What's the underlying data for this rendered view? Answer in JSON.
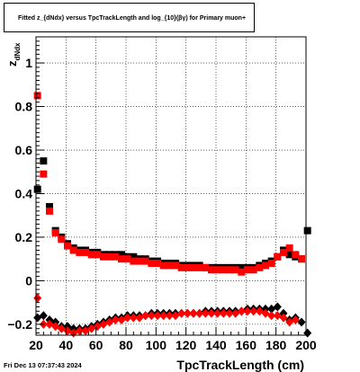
{
  "header": {
    "title": "Fitted  z_{dNdx}  versus TpcTrackLength and log_{10}(βγ) for Primary muon+"
  },
  "footer": {
    "date": "Fri Dec 13 07:37:43 2024"
  },
  "chart_data": {
    "type": "scatter",
    "title": "Fitted z_{dNdx} versus TpcTrackLength and log_{10}(βγ) for Primary muon+",
    "xlabel": "TpcTrackLength (cm)",
    "ylabel": "z_{dNdx}",
    "xlim": [
      20,
      200
    ],
    "ylim": [
      -0.25,
      1.12
    ],
    "grid": true,
    "legend": "none",
    "xticks": [
      20,
      40,
      60,
      80,
      100,
      120,
      140,
      160,
      180,
      200
    ],
    "yticks": [
      -0.2,
      0,
      0.2,
      0.4,
      0.6,
      0.8,
      1
    ],
    "ytick_labels": [
      "−0.2",
      "0",
      "0.2",
      "0.4",
      "0.6",
      "0.8",
      "1"
    ],
    "colors": {
      "black": "#000000",
      "red": "#ff0000"
    },
    "series": [
      {
        "color": "black",
        "marker": "square",
        "points": [
          [
            21,
            0.42
          ],
          [
            25,
            0.55
          ],
          [
            29,
            0.34
          ],
          [
            33,
            0.23
          ],
          [
            37,
            0.2
          ],
          [
            41,
            0.17
          ],
          [
            45,
            0.15
          ],
          [
            49,
            0.14
          ],
          [
            53,
            0.14
          ],
          [
            57,
            0.13
          ],
          [
            61,
            0.13
          ],
          [
            65,
            0.12
          ],
          [
            69,
            0.12
          ],
          [
            73,
            0.12
          ],
          [
            77,
            0.12
          ],
          [
            81,
            0.11
          ],
          [
            85,
            0.11
          ],
          [
            89,
            0.1
          ],
          [
            93,
            0.1
          ],
          [
            97,
            0.09
          ],
          [
            101,
            0.09
          ],
          [
            105,
            0.08
          ],
          [
            109,
            0.08
          ],
          [
            113,
            0.08
          ],
          [
            117,
            0.07
          ],
          [
            121,
            0.07
          ],
          [
            125,
            0.07
          ],
          [
            129,
            0.07
          ],
          [
            133,
            0.06
          ],
          [
            137,
            0.06
          ],
          [
            141,
            0.06
          ],
          [
            145,
            0.06
          ],
          [
            149,
            0.06
          ],
          [
            153,
            0.06
          ],
          [
            157,
            0.06
          ],
          [
            161,
            0.06
          ],
          [
            165,
            0.06
          ],
          [
            169,
            0.07
          ],
          [
            173,
            0.08
          ],
          [
            177,
            0.09
          ],
          [
            181,
            0.11
          ],
          [
            185,
            0.14
          ],
          [
            189,
            0.12
          ],
          [
            193,
            0.11
          ],
          [
            197,
            0.1
          ],
          [
            201,
            0.23
          ]
        ]
      },
      {
        "color": "red",
        "marker": "square",
        "points": [
          [
            21,
            0.85
          ],
          [
            25,
            0.49
          ],
          [
            29,
            0.32
          ],
          [
            33,
            0.22
          ],
          [
            37,
            0.19
          ],
          [
            41,
            0.16
          ],
          [
            45,
            0.14
          ],
          [
            49,
            0.13
          ],
          [
            53,
            0.13
          ],
          [
            57,
            0.12
          ],
          [
            61,
            0.12
          ],
          [
            65,
            0.11
          ],
          [
            69,
            0.11
          ],
          [
            73,
            0.11
          ],
          [
            77,
            0.1
          ],
          [
            81,
            0.1
          ],
          [
            85,
            0.09
          ],
          [
            89,
            0.09
          ],
          [
            93,
            0.09
          ],
          [
            97,
            0.08
          ],
          [
            101,
            0.08
          ],
          [
            105,
            0.07
          ],
          [
            109,
            0.07
          ],
          [
            113,
            0.07
          ],
          [
            117,
            0.06
          ],
          [
            121,
            0.06
          ],
          [
            125,
            0.06
          ],
          [
            129,
            0.06
          ],
          [
            133,
            0.06
          ],
          [
            137,
            0.05
          ],
          [
            141,
            0.05
          ],
          [
            145,
            0.05
          ],
          [
            149,
            0.05
          ],
          [
            153,
            0.05
          ],
          [
            157,
            0.04
          ],
          [
            161,
            0.05
          ],
          [
            165,
            0.05
          ],
          [
            169,
            0.06
          ],
          [
            173,
            0.07
          ],
          [
            177,
            0.08
          ],
          [
            181,
            0.11
          ],
          [
            185,
            0.13
          ],
          [
            189,
            0.15
          ],
          [
            193,
            0.12
          ],
          [
            197,
            0.1
          ]
        ]
      },
      {
        "color": "black",
        "marker": "diamond",
        "points": [
          [
            21,
            -0.17
          ],
          [
            25,
            -0.16
          ],
          [
            29,
            -0.18
          ],
          [
            33,
            -0.19
          ],
          [
            37,
            -0.21
          ],
          [
            41,
            -0.21
          ],
          [
            45,
            -0.22
          ],
          [
            49,
            -0.22
          ],
          [
            53,
            -0.22
          ],
          [
            57,
            -0.21
          ],
          [
            61,
            -0.2
          ],
          [
            65,
            -0.19
          ],
          [
            69,
            -0.18
          ],
          [
            73,
            -0.17
          ],
          [
            77,
            -0.17
          ],
          [
            81,
            -0.16
          ],
          [
            85,
            -0.16
          ],
          [
            89,
            -0.16
          ],
          [
            93,
            -0.16
          ],
          [
            97,
            -0.15
          ],
          [
            101,
            -0.15
          ],
          [
            105,
            -0.15
          ],
          [
            109,
            -0.15
          ],
          [
            113,
            -0.15
          ],
          [
            117,
            -0.15
          ],
          [
            121,
            -0.15
          ],
          [
            125,
            -0.15
          ],
          [
            129,
            -0.15
          ],
          [
            133,
            -0.14
          ],
          [
            137,
            -0.14
          ],
          [
            141,
            -0.14
          ],
          [
            145,
            -0.14
          ],
          [
            149,
            -0.14
          ],
          [
            153,
            -0.14
          ],
          [
            157,
            -0.14
          ],
          [
            161,
            -0.13
          ],
          [
            165,
            -0.13
          ],
          [
            169,
            -0.13
          ],
          [
            173,
            -0.13
          ],
          [
            177,
            -0.13
          ],
          [
            181,
            -0.12
          ],
          [
            185,
            -0.15
          ],
          [
            189,
            -0.18
          ],
          [
            193,
            -0.17
          ],
          [
            197,
            -0.19
          ],
          [
            201,
            -0.24
          ]
        ]
      },
      {
        "color": "red",
        "marker": "diamond",
        "points": [
          [
            21,
            -0.08
          ],
          [
            25,
            -0.2
          ],
          [
            29,
            -0.2
          ],
          [
            33,
            -0.21
          ],
          [
            37,
            -0.22
          ],
          [
            41,
            -0.23
          ],
          [
            45,
            -0.24
          ],
          [
            49,
            -0.23
          ],
          [
            53,
            -0.23
          ],
          [
            57,
            -0.22
          ],
          [
            61,
            -0.21
          ],
          [
            65,
            -0.2
          ],
          [
            69,
            -0.19
          ],
          [
            73,
            -0.18
          ],
          [
            77,
            -0.18
          ],
          [
            81,
            -0.17
          ],
          [
            85,
            -0.17
          ],
          [
            89,
            -0.17
          ],
          [
            93,
            -0.16
          ],
          [
            97,
            -0.16
          ],
          [
            101,
            -0.16
          ],
          [
            105,
            -0.16
          ],
          [
            109,
            -0.16
          ],
          [
            113,
            -0.16
          ],
          [
            117,
            -0.15
          ],
          [
            121,
            -0.15
          ],
          [
            125,
            -0.15
          ],
          [
            129,
            -0.15
          ],
          [
            133,
            -0.15
          ],
          [
            137,
            -0.15
          ],
          [
            141,
            -0.15
          ],
          [
            145,
            -0.15
          ],
          [
            149,
            -0.15
          ],
          [
            153,
            -0.15
          ],
          [
            157,
            -0.14
          ],
          [
            161,
            -0.14
          ],
          [
            165,
            -0.14
          ],
          [
            169,
            -0.14
          ],
          [
            173,
            -0.15
          ],
          [
            177,
            -0.16
          ],
          [
            181,
            -0.16
          ],
          [
            185,
            -0.17
          ],
          [
            189,
            -0.19
          ],
          [
            193,
            -0.18
          ]
        ]
      }
    ]
  }
}
